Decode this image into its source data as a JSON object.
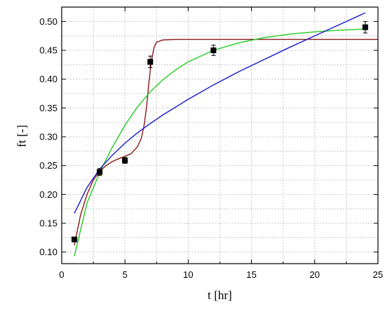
{
  "chart_data": {
    "type": "scatter",
    "xlabel": "t [hr]",
    "ylabel": "ft [-]",
    "xlim": [
      0,
      25
    ],
    "ylim": [
      0.08,
      0.525
    ],
    "x_ticks": [
      0,
      5,
      10,
      15,
      20,
      25
    ],
    "y_ticks": [
      0.1,
      0.15,
      0.2,
      0.25,
      0.3,
      0.35,
      0.4,
      0.45,
      0.5
    ],
    "grid": true,
    "points": {
      "x": [
        1,
        3,
        5,
        7,
        12,
        24
      ],
      "y": [
        0.122,
        0.239,
        0.259,
        0.43,
        0.45,
        0.49
      ],
      "err": [
        0.004,
        0.006,
        0.005,
        0.01,
        0.009,
        0.01
      ],
      "marker": "square",
      "color": "#000000"
    },
    "fits": [
      {
        "color": "#8b1a1a",
        "x": [
          1,
          1.5,
          2,
          2.5,
          3,
          3.5,
          4,
          4.5,
          5,
          5.5,
          6,
          6.3,
          6.5,
          6.7,
          6.9,
          7,
          7.1,
          7.3,
          7.5,
          8,
          9,
          10,
          12,
          15,
          20,
          25
        ],
        "y": [
          0.112,
          0.165,
          0.2,
          0.225,
          0.24,
          0.25,
          0.257,
          0.262,
          0.266,
          0.271,
          0.283,
          0.298,
          0.318,
          0.35,
          0.395,
          0.415,
          0.432,
          0.455,
          0.464,
          0.468,
          0.469,
          0.469,
          0.469,
          0.469,
          0.469,
          0.469
        ]
      },
      {
        "color": "#22cc22",
        "x": [
          1,
          2,
          3,
          4,
          5,
          6,
          7,
          8,
          9,
          10,
          12,
          14,
          16,
          18,
          20,
          22,
          24
        ],
        "y": [
          0.093,
          0.185,
          0.238,
          0.282,
          0.32,
          0.352,
          0.378,
          0.399,
          0.416,
          0.43,
          0.45,
          0.463,
          0.472,
          0.478,
          0.482,
          0.485,
          0.487
        ]
      },
      {
        "color": "#1a1acc",
        "x": [
          1,
          2,
          3,
          4,
          5,
          6,
          7,
          8,
          10,
          12,
          14,
          16,
          18,
          20,
          22,
          24
        ],
        "y": [
          0.167,
          0.212,
          0.244,
          0.268,
          0.289,
          0.307,
          0.323,
          0.338,
          0.365,
          0.39,
          0.413,
          0.434,
          0.455,
          0.475,
          0.495,
          0.515
        ]
      }
    ]
  }
}
